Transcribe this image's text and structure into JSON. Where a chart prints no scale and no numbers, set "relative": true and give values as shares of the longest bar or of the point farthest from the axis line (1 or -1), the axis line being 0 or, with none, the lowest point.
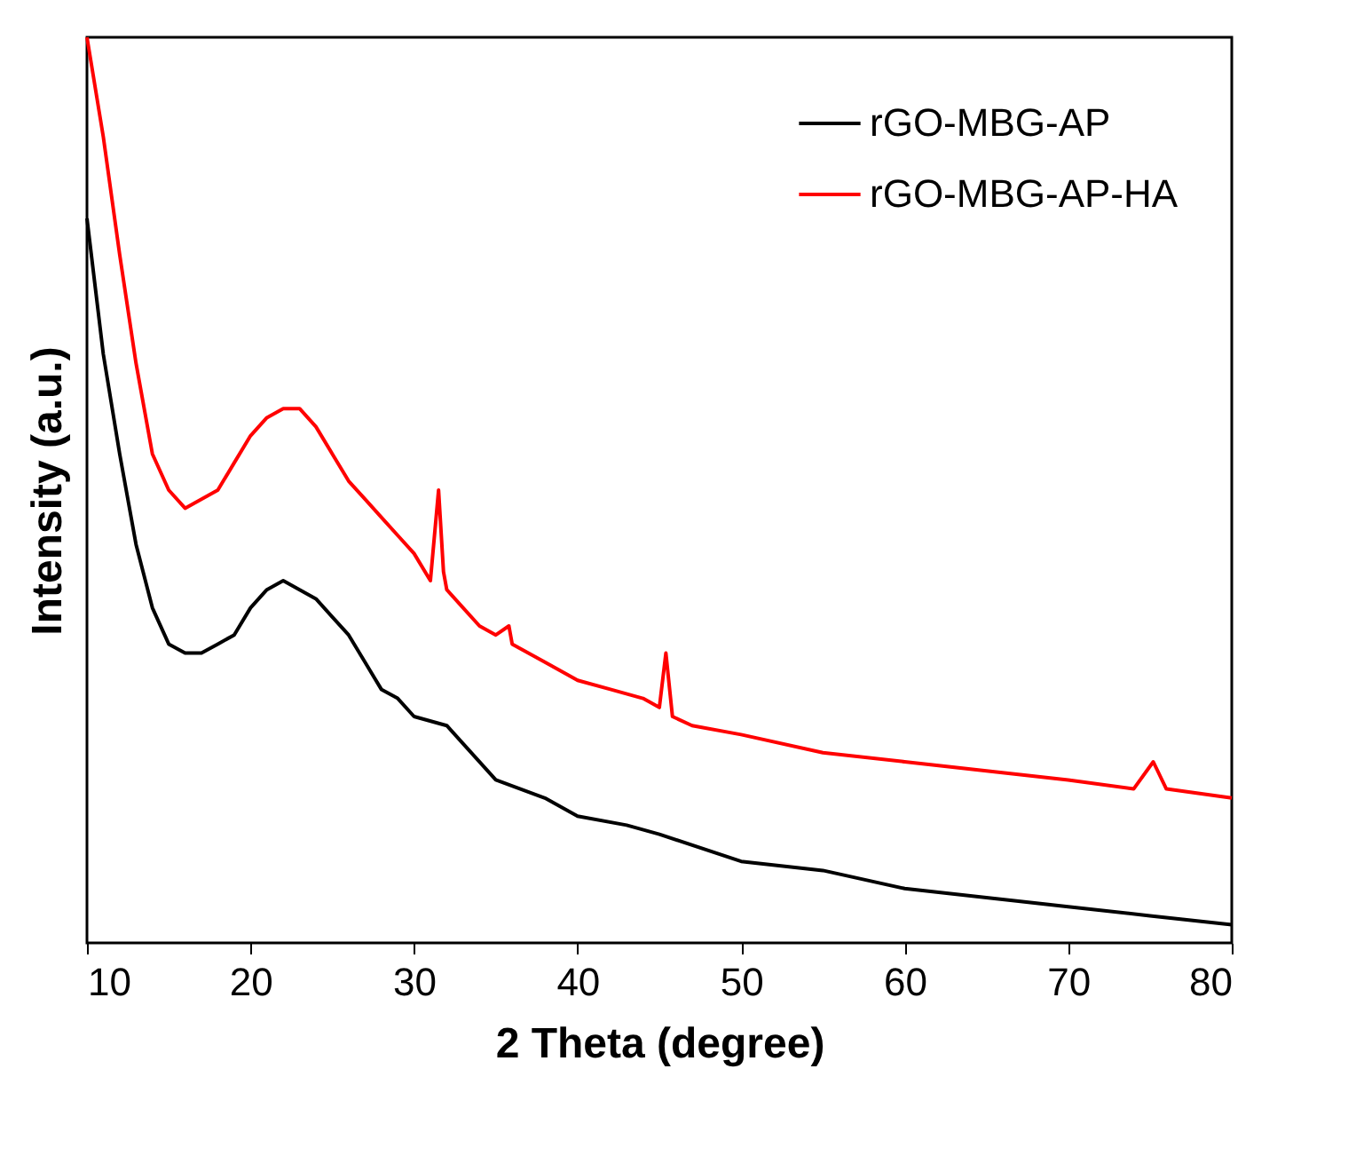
{
  "chart_data": {
    "type": "line",
    "relative": true,
    "xlabel": "2 Theta (degree)",
    "ylabel": "Intensity (a.u.)",
    "xlim": [
      10,
      80
    ],
    "xticks": [
      10,
      20,
      30,
      40,
      50,
      60,
      70,
      80
    ],
    "tick_labels": "x",
    "legend": "top right",
    "grid": false,
    "marker": "none",
    "line_style": "solid",
    "series": [
      {
        "name": "rGO-MBG-AP",
        "color": "#000000",
        "x": [
          10,
          11,
          12,
          13,
          14,
          15,
          16,
          17,
          18,
          19,
          20,
          21,
          22,
          23,
          24,
          25,
          26,
          27,
          28,
          29,
          30,
          32,
          33,
          35,
          38,
          40,
          43,
          45,
          50,
          55,
          60,
          65,
          70,
          75,
          80
        ],
        "values": [
          0.8,
          0.65,
          0.54,
          0.44,
          0.37,
          0.33,
          0.32,
          0.32,
          0.33,
          0.34,
          0.37,
          0.39,
          0.4,
          0.39,
          0.38,
          0.36,
          0.34,
          0.31,
          0.28,
          0.27,
          0.25,
          0.24,
          0.22,
          0.18,
          0.16,
          0.14,
          0.13,
          0.12,
          0.09,
          0.08,
          0.06,
          0.05,
          0.04,
          0.03,
          0.02
        ]
      },
      {
        "name": "rGO-MBG-AP-HA",
        "color": "#ff0000",
        "x": [
          10,
          11,
          12,
          13,
          14,
          15,
          16,
          17,
          18,
          19,
          20,
          21,
          22,
          23,
          24,
          25,
          26,
          27,
          28,
          29,
          30,
          31,
          31.5,
          31.8,
          32,
          33,
          34,
          35,
          35.8,
          36,
          38,
          40,
          42,
          44,
          45,
          45.4,
          45.8,
          47,
          50,
          55,
          60,
          65,
          70,
          74,
          75.2,
          76,
          80
        ],
        "values": [
          1.0,
          0.89,
          0.76,
          0.64,
          0.54,
          0.5,
          0.48,
          0.49,
          0.5,
          0.53,
          0.56,
          0.58,
          0.59,
          0.59,
          0.57,
          0.54,
          0.51,
          0.49,
          0.47,
          0.45,
          0.43,
          0.4,
          0.5,
          0.41,
          0.39,
          0.37,
          0.35,
          0.34,
          0.35,
          0.33,
          0.31,
          0.29,
          0.28,
          0.27,
          0.26,
          0.32,
          0.25,
          0.24,
          0.23,
          0.21,
          0.2,
          0.19,
          0.18,
          0.17,
          0.2,
          0.17,
          0.16
        ]
      }
    ]
  }
}
